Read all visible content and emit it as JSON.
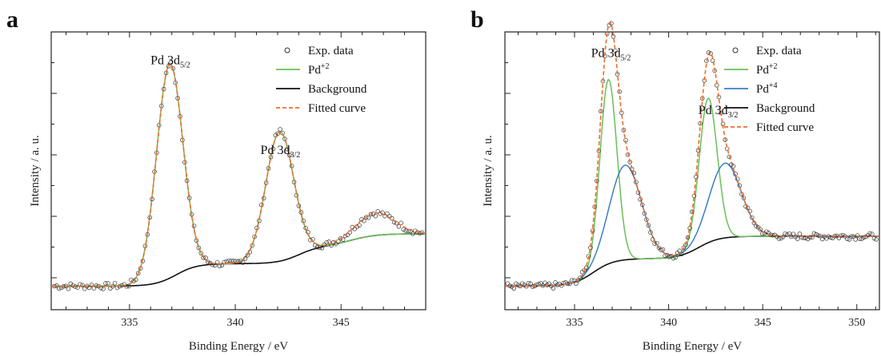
{
  "colors": {
    "exp": "#333333",
    "pd2": "#6bbf59",
    "pd4": "#3a7fc4",
    "background": "#111111",
    "fit": "#f26b2a"
  },
  "chart_data": [
    {
      "panel": "a",
      "type": "line",
      "xlabel": "Binding Energy   / eV",
      "ylabel": "Intensity   / a. u.",
      "xlim": [
        331.3,
        349.0
      ],
      "ylim": [
        0,
        1
      ],
      "xticks": [
        335,
        340,
        345
      ],
      "annotations": [
        {
          "text": "Pd 3d",
          "sub": "5/2",
          "x": 336.9,
          "y": 0.94
        },
        {
          "text": "Pd 3d",
          "sub": "3/2",
          "x": 342.1,
          "y": 0.58
        }
      ],
      "legend": [
        "Exp. data",
        "Pd+2",
        "Background",
        "Fitted curve"
      ],
      "series": [
        {
          "name": "Exp. data",
          "kind": "markers"
        },
        {
          "name": "Pd+2",
          "kind": "component",
          "peaks": [
            {
              "center": 336.9,
              "height": 0.86,
              "width": 0.62
            },
            {
              "center": 342.1,
              "height": 0.52,
              "width": 0.66
            }
          ]
        },
        {
          "name": "Background",
          "kind": "background",
          "base": 0.0,
          "steps": [
            {
              "center": 337.2,
              "height": 0.09,
              "width": 0.5
            },
            {
              "center": 343.0,
              "height": 0.07,
              "width": 0.5
            },
            {
              "center": 345.5,
              "height": 0.05,
              "width": 0.6
            }
          ]
        },
        {
          "name": "Fitted curve",
          "kind": "fit",
          "extra": [
            {
              "center": 346.6,
              "height": 0.09,
              "width": 0.9
            }
          ]
        }
      ]
    },
    {
      "panel": "b",
      "type": "line",
      "xlabel": "Binding Energy   / eV",
      "ylabel": "Intensity   / a. u.",
      "xlim": [
        331.3,
        351.2
      ],
      "ylim": [
        0,
        1
      ],
      "xticks": [
        335,
        340,
        345,
        350
      ],
      "annotations": [
        {
          "text": "Pd 3d",
          "sub": "5/2",
          "x": 336.9,
          "y": 0.97
        },
        {
          "text": "Pd 3d",
          "sub": "3/2",
          "x": 342.6,
          "y": 0.74
        }
      ],
      "legend": [
        "Exp. data",
        "Pd+2",
        "Pd+4",
        "Background",
        "Fitted curve"
      ],
      "series": [
        {
          "name": "Exp. data",
          "kind": "markers"
        },
        {
          "name": "Pd+2",
          "kind": "component",
          "peaks": [
            {
              "center": 336.8,
              "height": 0.74,
              "width": 0.45
            },
            {
              "center": 342.1,
              "height": 0.58,
              "width": 0.48
            }
          ]
        },
        {
          "name": "Pd+4",
          "kind": "component",
          "peaks": [
            {
              "center": 337.7,
              "height": 0.38,
              "width": 0.85
            },
            {
              "center": 343.0,
              "height": 0.3,
              "width": 0.85
            }
          ]
        },
        {
          "name": "Background",
          "kind": "background",
          "base": 0.0,
          "steps": [
            {
              "center": 336.0,
              "height": 0.11,
              "width": 0.55
            },
            {
              "center": 341.6,
              "height": 0.09,
              "width": 0.55
            }
          ]
        },
        {
          "name": "Fitted curve",
          "kind": "fit",
          "extra": []
        }
      ]
    }
  ]
}
